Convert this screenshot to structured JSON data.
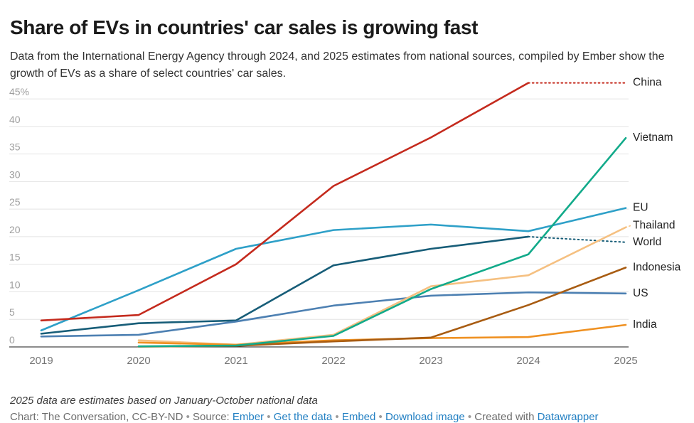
{
  "header": {
    "title": "Share of EVs in countries' car sales is growing fast",
    "subtitle": "Data from the International Energy Agency through 2024, and 2025 estimates from national sources, compiled by Ember show the growth of EVs as a share of select countries' car sales."
  },
  "footer": {
    "note": "2025 data are estimates based on January-October national data",
    "byline": [
      {
        "name": "byline-credit",
        "text": "Chart: The Conversation, CC-BY-ND"
      },
      {
        "name": "bullet-separator",
        "text": " • ",
        "sep": true
      },
      {
        "name": "source-label",
        "text": "Source: "
      },
      {
        "name": "ember",
        "text": "Ember",
        "link": true
      },
      {
        "name": "bullet-separator",
        "text": " • ",
        "sep": true
      },
      {
        "name": "get-the-data",
        "text": "Get the data",
        "link": true
      },
      {
        "name": "bullet-separator",
        "text": " • ",
        "sep": true
      },
      {
        "name": "embed",
        "text": "Embed",
        "link": true
      },
      {
        "name": "bullet-separator",
        "text": "  • ",
        "sep": true
      },
      {
        "name": "download-image",
        "text": "Download image",
        "link": true
      },
      {
        "name": "bullet-separator",
        "text": " • ",
        "sep": true
      },
      {
        "name": "created-with",
        "text": "Created with "
      },
      {
        "name": "datawrapper",
        "text": "Datawrapper",
        "link": true
      }
    ]
  },
  "colors": {
    "grid": "#e4e4e4",
    "axis_baseline": "#1a1a1a",
    "y_tick_label": "#9e9e9e",
    "x_tick_label": "#757575",
    "series_label": "#222222",
    "link_blue": "#2380c3"
  },
  "chart_data": {
    "type": "line",
    "title": "Share of EVs in countries' car sales is growing fast",
    "unit": "%",
    "x": [
      2019,
      2020,
      2021,
      2022,
      2023,
      2024,
      2025
    ],
    "x_range": [
      2019,
      2025
    ],
    "ylim": [
      0,
      48.5
    ],
    "yticks": [
      0,
      5,
      10,
      15,
      20,
      25,
      30,
      35,
      40,
      45
    ],
    "grid": true,
    "legend_position": "right-edge-direct-labels",
    "note_on_dotted": "dotted segments are 2025 estimates",
    "series": [
      {
        "name": "EU",
        "color": "#2ea0c8",
        "x": [
          2019,
          2020,
          2021,
          2022,
          2023,
          2024,
          2025
        ],
        "values": [
          3.0,
          10.3,
          17.8,
          21.2,
          22.2,
          21.0,
          25.2
        ]
      },
      {
        "name": "World",
        "color": "#175d78",
        "x": [
          2019,
          2020,
          2021,
          2022,
          2023,
          2024
        ],
        "values": [
          2.4,
          4.3,
          4.8,
          14.8,
          17.8,
          20.0
        ],
        "dashed": {
          "x": [
            2024,
            2025
          ],
          "values": [
            20.0,
            19.0
          ]
        }
      },
      {
        "name": "US",
        "color": "#4d80b2",
        "x": [
          2019,
          2020,
          2021,
          2022,
          2023,
          2024,
          2025
        ],
        "values": [
          1.9,
          2.2,
          4.6,
          7.5,
          9.3,
          9.9,
          9.7
        ]
      },
      {
        "name": "Thailand",
        "color": "#f5c081",
        "x": [
          2020,
          2021,
          2022,
          2023,
          2024,
          2025
        ],
        "values": [
          1.2,
          0.4,
          2.2,
          11.0,
          13.0,
          21.7
        ],
        "label_value": 22.0,
        "leader": "dotted"
      },
      {
        "name": "India",
        "color": "#ef9122",
        "x": [
          2020,
          2021,
          2022,
          2023,
          2024,
          2025
        ],
        "values": [
          0.8,
          0.4,
          1.2,
          1.6,
          1.8,
          4.0
        ]
      },
      {
        "name": "Indonesia",
        "color": "#a85c12",
        "x": [
          2020,
          2021,
          2022,
          2023,
          2024,
          2025
        ],
        "values": [
          0.05,
          0.2,
          1.0,
          1.7,
          7.6,
          14.4
        ]
      },
      {
        "name": "China",
        "color": "#c42a1d",
        "x": [
          2019,
          2020,
          2021,
          2022,
          2023,
          2024
        ],
        "values": [
          4.8,
          5.8,
          15.0,
          29.2,
          38.0,
          47.9
        ],
        "dashed": {
          "x": [
            2024,
            2025
          ],
          "values": [
            47.9,
            47.9
          ]
        }
      },
      {
        "name": "Vietnam",
        "color": "#12aa8a",
        "x": [
          2020,
          2021,
          2022,
          2023,
          2024,
          2025
        ],
        "values": [
          0.1,
          0.25,
          2.0,
          10.5,
          16.8,
          37.9
        ]
      }
    ]
  }
}
